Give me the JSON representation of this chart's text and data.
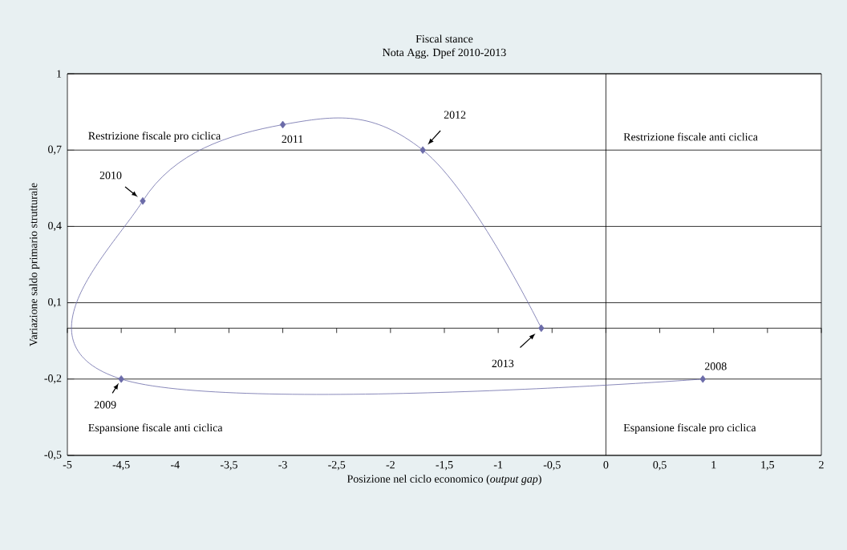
{
  "chart_data": {
    "type": "line",
    "title": "Fiscal stance",
    "subtitle": "Nota Agg. Dpef 2010-2013",
    "xlabel": "Posizione nel ciclo economico (*output gap*)",
    "ylabel": "Variazione saldo primario strutturale",
    "x": [
      0.9,
      -4.5,
      -4.3,
      -3.0,
      -1.7,
      -0.6
    ],
    "series": [
      {
        "color": "#6b6ba8",
        "values": [
          -0.2,
          -0.2,
          0.5,
          0.8,
          0.7,
          0.0
        ]
      }
    ],
    "marker": "diamond",
    "grid": "y",
    "xlim": [
      -5,
      2
    ],
    "ylim": [
      -0.5,
      1
    ],
    "xticks": [
      -5,
      {
        "value": -4.5,
        "label": "-4,5"
      },
      -4,
      {
        "value": -3.5,
        "label": "-3,5"
      },
      -3,
      {
        "value": -2.5,
        "label": "-2,5"
      },
      -2,
      {
        "value": -1.5,
        "label": "-1,5"
      },
      -1,
      {
        "value": -0.5,
        "label": "-0,5"
      },
      0,
      {
        "value": 0.5,
        "label": "0,5"
      },
      1,
      {
        "value": 1.5,
        "label": "1,5"
      },
      2
    ],
    "yticks": [
      {
        "value": -0.5,
        "label": "-0,5"
      },
      {
        "value": -0.2,
        "label": "-0,2"
      },
      {
        "value": 0.1,
        "label": "0,1"
      },
      {
        "value": 0.4,
        "label": "0,4"
      },
      {
        "value": 0.7,
        "label": "0,7"
      },
      1
    ],
    "ref_lines": [
      {
        "axis": "x",
        "value": 0,
        "color": "#000000"
      }
    ],
    "annotations": [
      {
        "text": "2008",
        "x": 0.9,
        "y": -0.2
      },
      {
        "text": "2009",
        "x": -4.5,
        "y": -0.2
      },
      {
        "text": "2010",
        "x": -4.3,
        "y": 0.5
      },
      {
        "text": "2011",
        "x": -3.0,
        "y": 0.8
      },
      {
        "text": "2012",
        "x": -1.7,
        "y": 0.7
      },
      {
        "text": "2013",
        "x": -0.6,
        "y": 0.0
      },
      "Restrizione fiscale pro ciclica",
      "Restrizione fiscale anti ciclica",
      "Espansione fiscale anti ciclica",
      "Espansione fiscale pro ciclica"
    ]
  }
}
